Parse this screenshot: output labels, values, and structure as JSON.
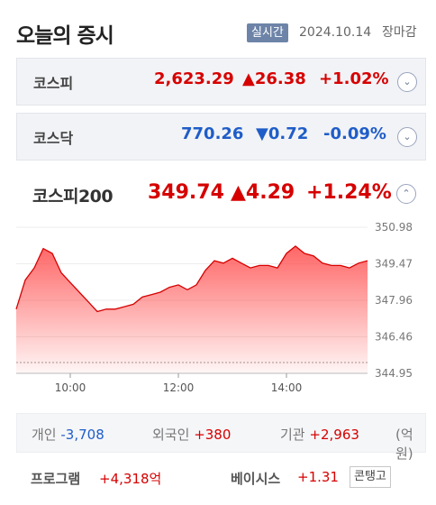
{
  "header": {
    "title": "오늘의 증시",
    "badge": "실시간",
    "date": "2024.10.14",
    "status": "장마감"
  },
  "kospi": {
    "name": "코스피",
    "value": "2,623.29",
    "change": "▲26.38",
    "percent": "+1.02%",
    "toggle": "⌄"
  },
  "kosdaq": {
    "name": "코스닥",
    "value": "770.26",
    "change": "▼0.72",
    "percent": "-0.09%",
    "toggle": "⌄"
  },
  "kospi200": {
    "name": "코스피200",
    "value": "349.74",
    "change": "▲4.29",
    "percent": "+1.24%",
    "toggle": "⌃"
  },
  "investors": {
    "individual": {
      "label": "개인",
      "value": "-3,708"
    },
    "foreign": {
      "label": "외국인",
      "value": "+380"
    },
    "institution": {
      "label": "기관",
      "value": "+2,963"
    },
    "unit": "(억원)"
  },
  "bottom": {
    "program_label": "프로그램",
    "program_value": "+4,318억",
    "basis_label": "베이시스",
    "basis_value": "+1.31",
    "contango_label": "콘탱고"
  },
  "colors": {
    "up": "#d60000",
    "down": "#1f5dc8",
    "area": "#ff4b4b"
  },
  "chart_data": {
    "type": "area",
    "y_ticks": [
      "350.98",
      "349.47",
      "347.96",
      "346.46",
      "344.95"
    ],
    "x_ticks": [
      "10:00",
      "12:00",
      "14:00"
    ],
    "ylim": [
      344.95,
      350.98
    ],
    "x": [
      "09:00",
      "09:10",
      "09:20",
      "09:30",
      "09:40",
      "09:50",
      "10:00",
      "10:10",
      "10:20",
      "10:30",
      "10:40",
      "10:50",
      "11:00",
      "11:10",
      "11:20",
      "11:30",
      "11:40",
      "11:50",
      "12:00",
      "12:10",
      "12:20",
      "12:30",
      "12:40",
      "12:50",
      "13:00",
      "13:10",
      "13:20",
      "13:30",
      "13:40",
      "13:50",
      "14:00",
      "14:10",
      "14:20",
      "14:30",
      "14:40",
      "14:50",
      "15:00",
      "15:10",
      "15:20",
      "15:30"
    ],
    "values": [
      347.6,
      348.8,
      349.3,
      350.1,
      349.9,
      349.1,
      348.7,
      348.3,
      347.9,
      347.5,
      347.6,
      347.6,
      347.7,
      347.8,
      348.1,
      348.2,
      348.3,
      348.5,
      348.6,
      348.4,
      348.6,
      349.2,
      349.6,
      349.5,
      349.7,
      349.5,
      349.3,
      349.4,
      349.4,
      349.3,
      349.9,
      350.2,
      349.9,
      349.8,
      349.5,
      349.4,
      349.4,
      349.3,
      349.5,
      349.6
    ]
  }
}
